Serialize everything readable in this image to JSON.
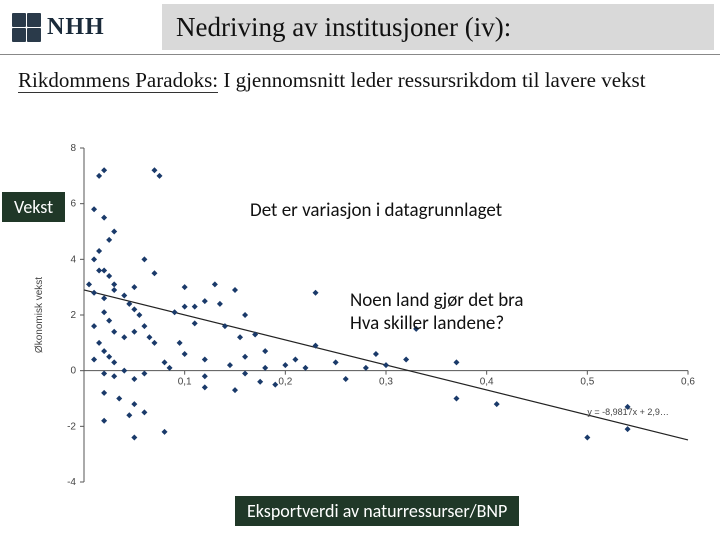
{
  "header": {
    "logo_text": "NHH",
    "title": "Nedriving av institusjoner (iv):"
  },
  "subtitle": {
    "lead": "Rikdommens Paradoks:",
    "rest": "  I gjennomsnitt leder ressursrikdom til lavere vekst"
  },
  "labels": {
    "y_label": "Vekst",
    "x_label": "Eksportverdi av naturressurser/BNP"
  },
  "annotations": {
    "a1": "Det er variasjon i datagrunnlaget",
    "a2_line1": "Noen land gjør det bra",
    "a2_line2": "Hva skiller landene?"
  },
  "chart": {
    "type": "scatter",
    "xlim": [
      0,
      0.6
    ],
    "ylim": [
      -4,
      8
    ],
    "xticks": [
      0,
      0.1,
      0.2,
      0.3,
      0.4,
      0.5,
      0.6
    ],
    "yticks": [
      -4,
      -2,
      0,
      2,
      4,
      6,
      8
    ],
    "ylabel_axis": "Økonomisk vekst",
    "background_color": "#ffffff",
    "axis_color": "#555555",
    "tick_fontsize": 10,
    "axis_label_fontsize": 10,
    "point_color": "#1a3a6a",
    "point_size": 3,
    "trend": {
      "slope": -8.9817,
      "intercept": 2.9,
      "equation": "y = -8,9817x + 2,9…",
      "line_color": "#222222",
      "line_width": 1.2
    },
    "points": [
      [
        0.01,
        5.8
      ],
      [
        0.015,
        7.0
      ],
      [
        0.02,
        7.2
      ],
      [
        0.07,
        7.2
      ],
      [
        0.075,
        7.0
      ],
      [
        0.02,
        5.5
      ],
      [
        0.03,
        5.0
      ],
      [
        0.025,
        4.7
      ],
      [
        0.015,
        4.3
      ],
      [
        0.01,
        4.0
      ],
      [
        0.015,
        3.6
      ],
      [
        0.02,
        3.6
      ],
      [
        0.005,
        3.1
      ],
      [
        0.025,
        3.4
      ],
      [
        0.03,
        3.1
      ],
      [
        0.01,
        2.8
      ],
      [
        0.02,
        2.6
      ],
      [
        0.03,
        2.9
      ],
      [
        0.04,
        2.7
      ],
      [
        0.05,
        3.0
      ],
      [
        0.06,
        4.0
      ],
      [
        0.07,
        3.5
      ],
      [
        0.045,
        2.4
      ],
      [
        0.05,
        2.2
      ],
      [
        0.055,
        2.0
      ],
      [
        0.02,
        2.1
      ],
      [
        0.025,
        1.8
      ],
      [
        0.01,
        1.6
      ],
      [
        0.03,
        1.4
      ],
      [
        0.04,
        1.2
      ],
      [
        0.05,
        1.4
      ],
      [
        0.06,
        1.6
      ],
      [
        0.065,
        1.2
      ],
      [
        0.07,
        1.0
      ],
      [
        0.015,
        1.0
      ],
      [
        0.02,
        0.7
      ],
      [
        0.025,
        0.5
      ],
      [
        0.01,
        0.4
      ],
      [
        0.03,
        0.3
      ],
      [
        0.02,
        -0.1
      ],
      [
        0.03,
        -0.2
      ],
      [
        0.04,
        0.0
      ],
      [
        0.05,
        -0.3
      ],
      [
        0.06,
        -0.1
      ],
      [
        0.02,
        -0.8
      ],
      [
        0.035,
        -1.0
      ],
      [
        0.05,
        -1.2
      ],
      [
        0.06,
        -1.5
      ],
      [
        0.045,
        -1.6
      ],
      [
        0.02,
        -1.8
      ],
      [
        0.08,
        -2.2
      ],
      [
        0.05,
        -2.4
      ],
      [
        0.08,
        0.3
      ],
      [
        0.085,
        0.1
      ],
      [
        0.09,
        2.1
      ],
      [
        0.1,
        3.0
      ],
      [
        0.1,
        2.3
      ],
      [
        0.095,
        1.0
      ],
      [
        0.1,
        0.6
      ],
      [
        0.11,
        2.3
      ],
      [
        0.11,
        1.7
      ],
      [
        0.12,
        2.5
      ],
      [
        0.12,
        0.4
      ],
      [
        0.12,
        -0.2
      ],
      [
        0.12,
        -0.6
      ],
      [
        0.13,
        3.1
      ],
      [
        0.135,
        2.4
      ],
      [
        0.14,
        1.6
      ],
      [
        0.145,
        0.2
      ],
      [
        0.15,
        -0.7
      ],
      [
        0.15,
        2.9
      ],
      [
        0.155,
        1.2
      ],
      [
        0.16,
        2.0
      ],
      [
        0.16,
        0.5
      ],
      [
        0.16,
        -0.1
      ],
      [
        0.17,
        1.3
      ],
      [
        0.175,
        -0.4
      ],
      [
        0.18,
        0.1
      ],
      [
        0.18,
        0.7
      ],
      [
        0.19,
        -0.5
      ],
      [
        0.2,
        0.2
      ],
      [
        0.21,
        0.4
      ],
      [
        0.22,
        0.1
      ],
      [
        0.23,
        2.8
      ],
      [
        0.23,
        0.9
      ],
      [
        0.25,
        0.3
      ],
      [
        0.26,
        -0.3
      ],
      [
        0.28,
        0.1
      ],
      [
        0.29,
        0.6
      ],
      [
        0.3,
        0.2
      ],
      [
        0.32,
        0.4
      ],
      [
        0.33,
        1.5
      ],
      [
        0.37,
        0.3
      ],
      [
        0.37,
        -1.0
      ],
      [
        0.41,
        -1.2
      ],
      [
        0.5,
        -2.4
      ],
      [
        0.54,
        -1.3
      ],
      [
        0.54,
        -2.1
      ]
    ]
  }
}
